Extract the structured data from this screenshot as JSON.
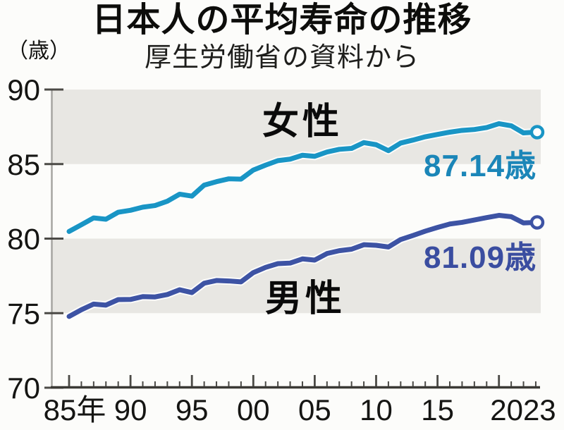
{
  "chart_data": {
    "type": "line",
    "title": "日本人の平均寿命の推移",
    "subtitle": "厚生労働省の資料から",
    "unit_label": "（歳）",
    "ylabel": "歳",
    "ylim": [
      70,
      90
    ],
    "y_ticks": [
      90,
      85,
      80,
      75,
      70
    ],
    "xlim": [
      1985,
      2023
    ],
    "x_tick_labels": [
      {
        "year": 1985,
        "label": "85年"
      },
      {
        "year": 1990,
        "label": "90"
      },
      {
        "year": 1995,
        "label": "95"
      },
      {
        "year": 2000,
        "label": "00"
      },
      {
        "year": 2005,
        "label": "05"
      },
      {
        "year": 2010,
        "label": "10"
      },
      {
        "year": 2015,
        "label": "15"
      },
      {
        "year": 2023,
        "label": "2023"
      }
    ],
    "grid": false,
    "shaded_bands": [
      [
        85,
        90
      ],
      [
        75,
        80
      ]
    ],
    "legend_position": "inline",
    "years": [
      1985,
      1986,
      1987,
      1988,
      1989,
      1990,
      1991,
      1992,
      1993,
      1994,
      1995,
      1996,
      1997,
      1998,
      1999,
      2000,
      2001,
      2002,
      2003,
      2004,
      2005,
      2006,
      2007,
      2008,
      2009,
      2010,
      2011,
      2012,
      2013,
      2014,
      2015,
      2016,
      2017,
      2018,
      2019,
      2020,
      2021,
      2022,
      2023
    ],
    "series": [
      {
        "key": "female",
        "name": "女性",
        "color": "#1995c5",
        "label_color": "#1b86b8",
        "end_label": "87.14歳",
        "end_value": 87.14,
        "values": [
          80.48,
          80.93,
          81.39,
          81.3,
          81.77,
          81.9,
          82.11,
          82.22,
          82.51,
          82.98,
          82.85,
          83.59,
          83.82,
          84.01,
          83.99,
          84.6,
          84.93,
          85.23,
          85.33,
          85.59,
          85.52,
          85.81,
          85.99,
          86.05,
          86.44,
          86.3,
          85.9,
          86.41,
          86.61,
          86.83,
          86.99,
          87.14,
          87.26,
          87.32,
          87.45,
          87.71,
          87.57,
          87.09,
          87.14
        ]
      },
      {
        "key": "male",
        "name": "男性",
        "color": "#3d53a4",
        "label_color": "#3a4da0",
        "end_label": "81.09歳",
        "end_value": 81.09,
        "values": [
          74.78,
          75.23,
          75.61,
          75.54,
          75.91,
          75.92,
          76.11,
          76.09,
          76.25,
          76.57,
          76.38,
          77.01,
          77.19,
          77.16,
          77.1,
          77.72,
          78.07,
          78.32,
          78.36,
          78.64,
          78.56,
          79.0,
          79.19,
          79.29,
          79.59,
          79.55,
          79.44,
          79.94,
          80.21,
          80.5,
          80.75,
          80.98,
          81.09,
          81.25,
          81.41,
          81.56,
          81.47,
          81.05,
          81.09
        ]
      }
    ]
  },
  "colors": {
    "background": "#fcfcfa",
    "band": "#e8e7e3",
    "axis_light": "#a6a5a1",
    "axis_dark": "#3a3935",
    "tick": "#4b4a46",
    "tick_label": "#151513",
    "line_casing": "#ffffff"
  }
}
